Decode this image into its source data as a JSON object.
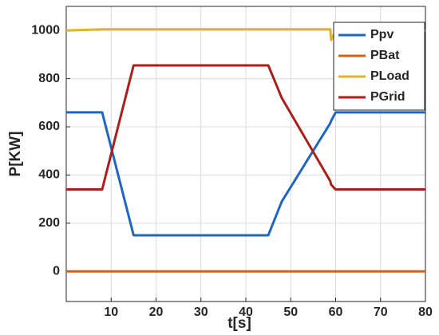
{
  "chart_data": {
    "type": "line",
    "x_label": "t[s]",
    "y_label": "P[KW]",
    "x": [
      0,
      8,
      15,
      45,
      48,
      58.8,
      59,
      60,
      80
    ],
    "series": [
      {
        "name": "Ppv",
        "color": "#1f66c2",
        "values": [
          660,
          660,
          150,
          150,
          290,
          615,
          625,
          660,
          660
        ]
      },
      {
        "name": "PBat",
        "color": "#d2601a",
        "values": [
          0,
          0,
          0,
          0,
          0,
          0,
          0,
          0,
          0
        ]
      },
      {
        "name": "PLoad",
        "color": "#e3b32a",
        "values": [
          1000,
          1005,
          1005,
          1005,
          1005,
          1005,
          960,
          1000,
          1000
        ]
      },
      {
        "name": "PGrid",
        "color": "#a8201c",
        "values": [
          340,
          340,
          855,
          855,
          720,
          375,
          360,
          340,
          340
        ]
      }
    ],
    "xlim": [
      0,
      80
    ],
    "xticks": [
      10,
      20,
      30,
      40,
      50,
      60,
      70,
      80
    ],
    "ylim": [
      -125,
      1100
    ],
    "yticks": [
      0,
      200,
      400,
      600,
      800,
      1000
    ],
    "grid": true,
    "legend": "top-right"
  }
}
